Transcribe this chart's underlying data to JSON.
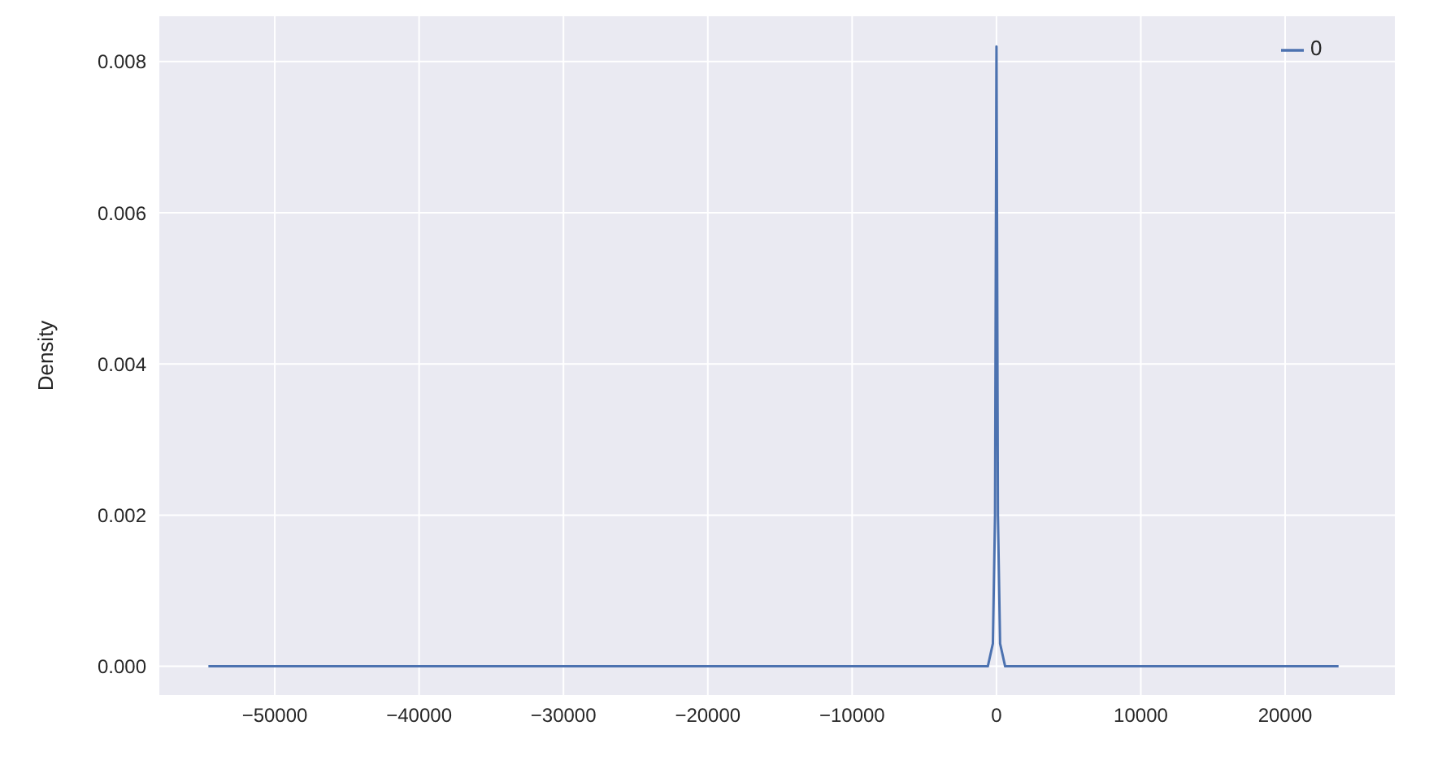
{
  "chart_data": {
    "type": "line",
    "ylabel": "Density",
    "x": [
      -54600,
      -20000,
      -5000,
      -600,
      -250,
      -100,
      0,
      100,
      250,
      600,
      5000,
      23700
    ],
    "series": [
      {
        "name": "0",
        "color": "#4c72b0",
        "values": [
          0,
          0,
          0,
          0,
          0.0003,
          0.002,
          0.0082,
          0.002,
          0.0003,
          0,
          0,
          0
        ]
      }
    ],
    "xlim": [
      -58000,
      27600
    ],
    "xticks": [
      {
        "value": -50000,
        "label": "−50000"
      },
      {
        "value": -40000,
        "label": "−40000"
      },
      {
        "value": -30000,
        "label": "−30000"
      },
      {
        "value": -20000,
        "label": "−20000"
      },
      {
        "value": -10000,
        "label": "−10000"
      },
      0,
      10000,
      20000
    ],
    "ylim": [
      -0.00038,
      0.0086
    ],
    "yticks": [
      {
        "value": 0,
        "label": "0.000"
      },
      {
        "value": 0.002,
        "label": "0.002"
      },
      {
        "value": 0.004,
        "label": "0.004"
      },
      {
        "value": 0.006,
        "label": "0.006"
      },
      {
        "value": 0.008,
        "label": "0.008"
      }
    ],
    "grid": true,
    "legend": "top right",
    "marker": "none",
    "line_style": "solid"
  }
}
